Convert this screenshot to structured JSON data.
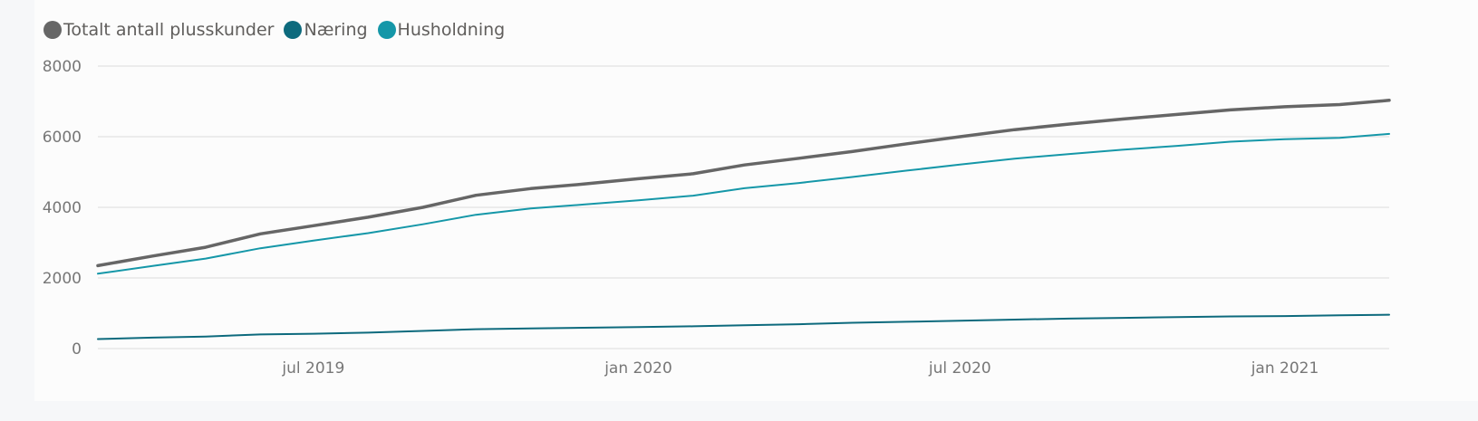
{
  "chart_data": {
    "type": "line",
    "legend_position": "top-left",
    "grid": true,
    "xlim": [
      "2019-03-01",
      "2021-03-01"
    ],
    "ylim": [
      0,
      8000
    ],
    "y_ticks": [
      0,
      2000,
      4000,
      6000,
      8000
    ],
    "x_ticks": [
      {
        "date": "2019-07-01",
        "label": "jul 2019"
      },
      {
        "date": "2020-01-01",
        "label": "jan 2020"
      },
      {
        "date": "2020-07-01",
        "label": "jul 2020"
      },
      {
        "date": "2021-01-01",
        "label": "jan 2021"
      }
    ],
    "x": [
      "2019-03-01",
      "2019-04-01",
      "2019-05-01",
      "2019-06-01",
      "2019-07-01",
      "2019-08-01",
      "2019-09-01",
      "2019-10-01",
      "2019-11-01",
      "2019-12-01",
      "2020-01-01",
      "2020-02-01",
      "2020-03-01",
      "2020-04-01",
      "2020-05-01",
      "2020-06-01",
      "2020-07-01",
      "2020-08-01",
      "2020-09-01",
      "2020-10-01",
      "2020-11-01",
      "2020-12-01",
      "2021-01-01",
      "2021-02-01",
      "2021-03-01"
    ],
    "series": [
      {
        "name": "Totalt antall plusskunder",
        "color": "#666666",
        "values": [
          2350,
          2620,
          2870,
          3250,
          3480,
          3720,
          4000,
          4340,
          4530,
          4660,
          4810,
          4950,
          5200,
          5390,
          5580,
          5800,
          6000,
          6200,
          6360,
          6500,
          6630,
          6760,
          6850,
          6910,
          7030
        ]
      },
      {
        "name": "Næring",
        "color": "#0d6a7d",
        "values": [
          270,
          310,
          340,
          400,
          420,
          450,
          500,
          550,
          570,
          590,
          610,
          630,
          660,
          690,
          730,
          760,
          790,
          820,
          850,
          870,
          890,
          910,
          920,
          940,
          960
        ]
      },
      {
        "name": "Husholdning",
        "color": "#1597a8",
        "values": [
          2120,
          2340,
          2550,
          2840,
          3060,
          3270,
          3520,
          3790,
          3970,
          4080,
          4200,
          4330,
          4540,
          4690,
          4860,
          5040,
          5210,
          5380,
          5510,
          5630,
          5740,
          5860,
          5930,
          5970,
          6080
        ]
      }
    ]
  }
}
